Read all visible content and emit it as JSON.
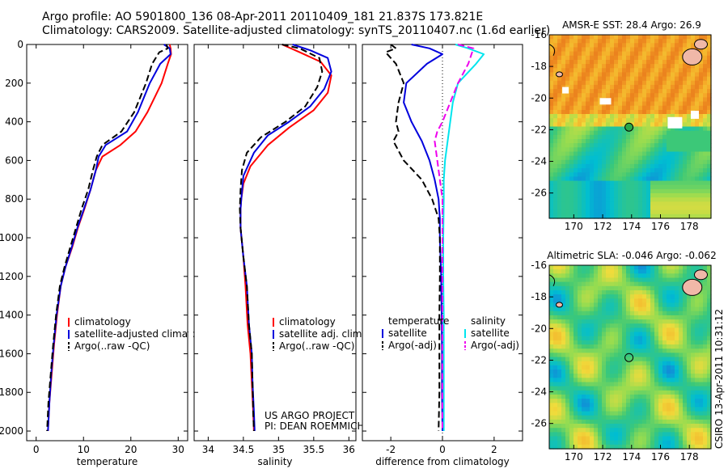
{
  "header": {
    "line1": "Argo profile: AO 5901800_136 08-Apr-2011 20110409_181 21.837S 173.821E",
    "line2": "Climatology: CARS2009. Satellite-adjusted climatology: synTS_20110407.nc (1.6d earlier)"
  },
  "side_text": "CSIRO 13-Apr-2011 10:31:12",
  "colors": {
    "clim": "#ff0000",
    "sat": "#0000dd",
    "argo": "#000000",
    "sal_sat": "#00e5ee",
    "sal_argo": "#ee00ee",
    "coast": "#f0b8a8"
  },
  "chart_data": [
    {
      "type": "line",
      "id": "temperature",
      "xlabel": "temperature",
      "xlim": [
        -2,
        32
      ],
      "ylim": [
        0,
        2050
      ],
      "xticks": [
        0,
        10,
        20,
        30
      ],
      "yticks": [
        0,
        200,
        400,
        600,
        800,
        1000,
        1200,
        1400,
        1600,
        1800,
        2000
      ],
      "legend": [
        "climatology",
        "satellite-adjusted climatology",
        "Argo(..raw -QC)"
      ],
      "series": [
        {
          "name": "climatology",
          "style": "clim",
          "points": [
            [
              28.2,
              0
            ],
            [
              28.4,
              20
            ],
            [
              28.5,
              50
            ],
            [
              27.8,
              100
            ],
            [
              26.5,
              200
            ],
            [
              23.5,
              350
            ],
            [
              21,
              450
            ],
            [
              17.8,
              520
            ],
            [
              14,
              580
            ],
            [
              12.6,
              650
            ],
            [
              11.5,
              750
            ],
            [
              10.2,
              850
            ],
            [
              8.8,
              950
            ],
            [
              7.6,
              1050
            ],
            [
              6.2,
              1150
            ],
            [
              5.2,
              1250
            ],
            [
              4.4,
              1400
            ],
            [
              3.8,
              1550
            ],
            [
              3.3,
              1700
            ],
            [
              2.8,
              1850
            ],
            [
              2.5,
              2000
            ]
          ]
        },
        {
          "name": "satellite-adjusted climatology",
          "style": "sat",
          "points": [
            [
              27,
              0
            ],
            [
              28.2,
              20
            ],
            [
              28.4,
              50
            ],
            [
              26.2,
              100
            ],
            [
              24,
              200
            ],
            [
              21.5,
              350
            ],
            [
              19.2,
              450
            ],
            [
              14.7,
              520
            ],
            [
              13.2,
              580
            ],
            [
              12.6,
              650
            ],
            [
              11.5,
              750
            ],
            [
              10.1,
              850
            ],
            [
              8.7,
              950
            ],
            [
              7.5,
              1050
            ],
            [
              6.2,
              1150
            ],
            [
              5.2,
              1250
            ],
            [
              4.3,
              1400
            ],
            [
              3.7,
              1550
            ],
            [
              3.2,
              1700
            ],
            [
              2.8,
              1850
            ],
            [
              2.5,
              2000
            ]
          ]
        },
        {
          "name": "Argo(..raw -QC)",
          "style": "argo",
          "points": [
            [
              27.5,
              0
            ],
            [
              27.8,
              20
            ],
            [
              26,
              40
            ],
            [
              24.5,
              100
            ],
            [
              23.2,
              200
            ],
            [
              20.7,
              350
            ],
            [
              18,
              450
            ],
            [
              14,
              520
            ],
            [
              12.8,
              580
            ],
            [
              12,
              650
            ],
            [
              11,
              750
            ],
            [
              9.6,
              850
            ],
            [
              8.4,
              950
            ],
            [
              7.2,
              1050
            ],
            [
              6,
              1150
            ],
            [
              5,
              1250
            ],
            [
              4.2,
              1400
            ],
            [
              3.6,
              1550
            ],
            [
              3.1,
              1700
            ],
            [
              2.6,
              1850
            ],
            [
              2.3,
              2000
            ]
          ]
        }
      ]
    },
    {
      "type": "line",
      "id": "salinity",
      "xlabel": "salinity",
      "xlim": [
        33.8,
        36.1
      ],
      "ylim": [
        0,
        2050
      ],
      "xticks": [
        34,
        34.5,
        35,
        35.5,
        36
      ],
      "legend": [
        "climatology",
        "satellite adj. clim.",
        "Argo(..raw -QC)"
      ],
      "annotation": [
        "US ARGO PROJECT",
        "PI: DEAN ROEMMICH"
      ],
      "series": [
        {
          "name": "climatology",
          "style": "clim",
          "points": [
            [
              35.05,
              0
            ],
            [
              35.3,
              40
            ],
            [
              35.6,
              90
            ],
            [
              35.75,
              160
            ],
            [
              35.7,
              250
            ],
            [
              35.5,
              340
            ],
            [
              35.15,
              430
            ],
            [
              34.85,
              520
            ],
            [
              34.6,
              630
            ],
            [
              34.5,
              720
            ],
            [
              34.47,
              800
            ],
            [
              34.46,
              850
            ],
            [
              34.46,
              950
            ],
            [
              34.5,
              1100
            ],
            [
              34.53,
              1250
            ],
            [
              34.56,
              1450
            ],
            [
              34.6,
              1600
            ],
            [
              34.62,
              1750
            ],
            [
              34.64,
              1900
            ],
            [
              34.65,
              2000
            ]
          ]
        },
        {
          "name": "satellite adj. clim.",
          "style": "sat",
          "points": [
            [
              35.2,
              0
            ],
            [
              35.45,
              30
            ],
            [
              35.7,
              70
            ],
            [
              35.75,
              140
            ],
            [
              35.65,
              230
            ],
            [
              35.45,
              320
            ],
            [
              35.15,
              400
            ],
            [
              34.85,
              470
            ],
            [
              34.65,
              560
            ],
            [
              34.5,
              680
            ],
            [
              34.47,
              800
            ],
            [
              34.46,
              850
            ],
            [
              34.46,
              950
            ],
            [
              34.5,
              1100
            ],
            [
              34.55,
              1250
            ],
            [
              34.58,
              1450
            ],
            [
              34.62,
              1600
            ],
            [
              34.63,
              1750
            ],
            [
              34.65,
              1900
            ],
            [
              34.66,
              2000
            ]
          ]
        },
        {
          "name": "Argo(..raw -QC)",
          "style": "argo",
          "points": [
            [
              35.05,
              0
            ],
            [
              35.3,
              20
            ],
            [
              35.58,
              70
            ],
            [
              35.62,
              140
            ],
            [
              35.55,
              220
            ],
            [
              35.38,
              320
            ],
            [
              35.1,
              400
            ],
            [
              34.75,
              480
            ],
            [
              34.55,
              560
            ],
            [
              34.48,
              650
            ],
            [
              34.46,
              750
            ],
            [
              34.45,
              850
            ],
            [
              34.46,
              950
            ],
            [
              34.5,
              1100
            ],
            [
              34.55,
              1250
            ],
            [
              34.58,
              1450
            ],
            [
              34.62,
              1600
            ],
            [
              34.63,
              1750
            ],
            [
              34.64,
              1900
            ],
            [
              34.65,
              2000
            ]
          ]
        }
      ]
    },
    {
      "type": "line",
      "id": "difference",
      "xlabel": "difference from climatology",
      "xlim": [
        -3.1,
        3.1
      ],
      "ylim": [
        0,
        2050
      ],
      "xticks": [
        -2,
        0,
        2
      ],
      "legend_temperature_title": "temperature",
      "legend_salinity_title": "salinity",
      "legend": [
        "satellite",
        "Argo(-adj)",
        "satellite",
        "Argo(-adj)"
      ],
      "series": [
        {
          "name": "temperature satellite",
          "style": "sat",
          "points": [
            [
              -1.2,
              0
            ],
            [
              -0.5,
              20
            ],
            [
              0,
              50
            ],
            [
              -0.6,
              100
            ],
            [
              -1.4,
              200
            ],
            [
              -1.5,
              300
            ],
            [
              -1.2,
              400
            ],
            [
              -1.0,
              450
            ],
            [
              -0.8,
              500
            ],
            [
              -0.5,
              600
            ],
            [
              -0.3,
              700
            ],
            [
              -0.15,
              800
            ],
            [
              -0.1,
              900
            ],
            [
              -0.1,
              1000
            ],
            [
              -0.05,
              1200
            ],
            [
              -0.03,
              1400
            ],
            [
              -0.02,
              1600
            ],
            [
              -0.02,
              1800
            ],
            [
              0,
              2000
            ]
          ]
        },
        {
          "name": "temperature Argo(-adj)",
          "style": "argo",
          "points": [
            [
              -2,
              0
            ],
            [
              -1.8,
              20
            ],
            [
              -2.2,
              40
            ],
            [
              -1.8,
              100
            ],
            [
              -1.5,
              200
            ],
            [
              -1.7,
              300
            ],
            [
              -1.8,
              400
            ],
            [
              -1.7,
              450
            ],
            [
              -1.9,
              500
            ],
            [
              -1.5,
              600
            ],
            [
              -0.8,
              700
            ],
            [
              -0.4,
              800
            ],
            [
              -0.15,
              900
            ],
            [
              -0.1,
              1000
            ],
            [
              -0.1,
              1200
            ],
            [
              -0.12,
              1400
            ],
            [
              -0.12,
              1600
            ],
            [
              -0.12,
              1800
            ],
            [
              -0.15,
              2000
            ]
          ]
        },
        {
          "name": "salinity satellite",
          "style": "sal_sat",
          "points": [
            [
              0.5,
              0
            ],
            [
              1.0,
              20
            ],
            [
              1.6,
              50
            ],
            [
              1.3,
              100
            ],
            [
              0.6,
              200
            ],
            [
              0.4,
              300
            ],
            [
              0.3,
              400
            ],
            [
              0.2,
              500
            ],
            [
              0.1,
              600
            ],
            [
              0.05,
              700
            ],
            [
              0.05,
              800
            ],
            [
              0.03,
              1000
            ],
            [
              0.03,
              1200
            ],
            [
              0.05,
              1400
            ],
            [
              0.05,
              1600
            ],
            [
              0.05,
              1800
            ],
            [
              0.05,
              2000
            ]
          ]
        },
        {
          "name": "salinity Argo(-adj)",
          "style": "sal_argo",
          "points": [
            [
              0.6,
              0
            ],
            [
              1.2,
              20
            ],
            [
              1.0,
              100
            ],
            [
              0.6,
              200
            ],
            [
              0.3,
              300
            ],
            [
              0,
              400
            ],
            [
              -0.2,
              450
            ],
            [
              -0.3,
              500
            ],
            [
              -0.2,
              600
            ],
            [
              -0.1,
              700
            ],
            [
              0,
              800
            ],
            [
              0,
              900
            ],
            [
              0,
              1000
            ],
            [
              0,
              1200
            ],
            [
              0,
              1400
            ],
            [
              0,
              1600
            ],
            [
              0,
              1800
            ],
            [
              0,
              2000
            ]
          ]
        }
      ]
    },
    {
      "type": "heatmap",
      "id": "sst_map",
      "title": "AMSR-E SST: 28.4 Argo: 26.9",
      "xlim": [
        168.3,
        179.5
      ],
      "ylim": [
        -27.6,
        -16
      ],
      "xticks": [
        170,
        172,
        174,
        176,
        178
      ],
      "yticks": [
        -16,
        -18,
        -20,
        -22,
        -24,
        -26
      ],
      "marker": {
        "lon": 173.821,
        "lat": -21.837
      }
    },
    {
      "type": "heatmap",
      "id": "sla_map",
      "title": "Altimetric SLA: -0.046 Argo: -0.062",
      "xlim": [
        168.3,
        179.5
      ],
      "ylim": [
        -27.6,
        -16
      ],
      "xticks": [
        170,
        172,
        174,
        176,
        178
      ],
      "yticks": [
        -16,
        -18,
        -20,
        -22,
        -24,
        -26
      ],
      "marker": {
        "lon": 173.821,
        "lat": -21.837
      }
    }
  ]
}
